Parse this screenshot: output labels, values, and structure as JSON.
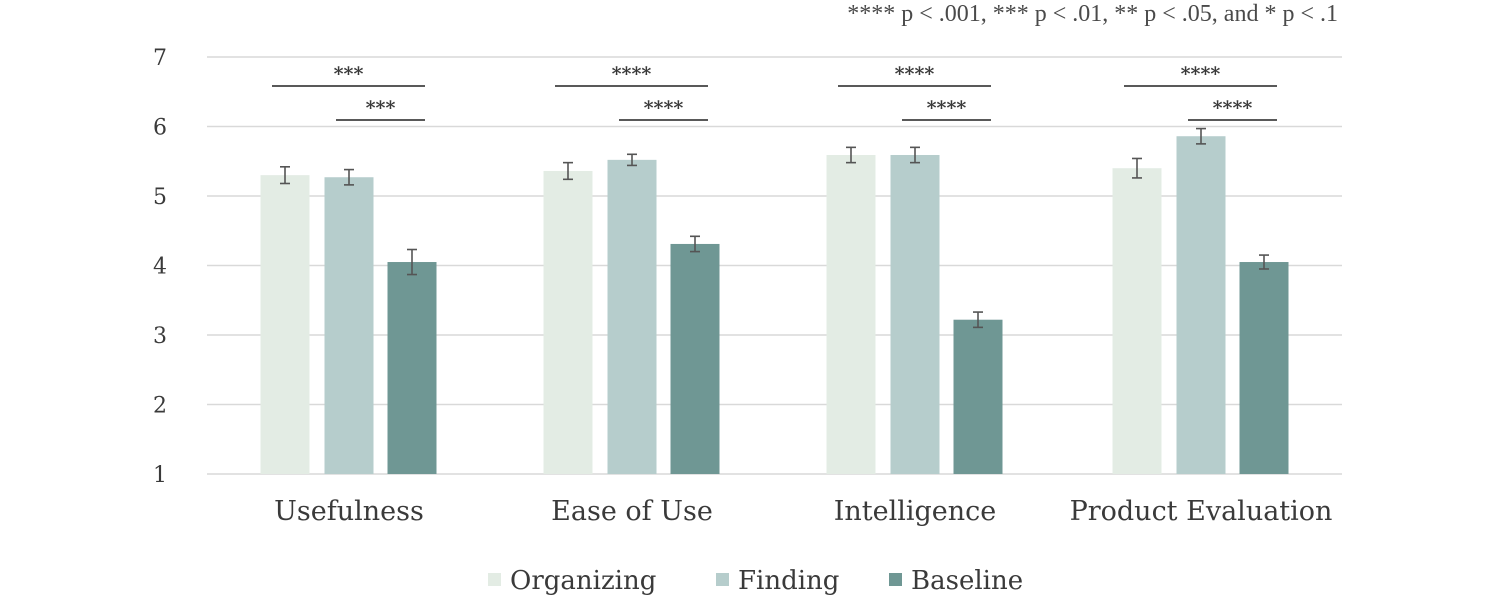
{
  "note": "**** p < .001, *** p < .01, ** p < .05, and * p < .1",
  "chart_data": {
    "type": "bar",
    "categories": [
      "Usefulness",
      "Ease of Use",
      "Intelligence",
      "Product Evaluation"
    ],
    "ylim": [
      1,
      7
    ],
    "yticks": [
      "1",
      "2",
      "3",
      "4",
      "5",
      "6",
      "7"
    ],
    "grid": true,
    "legend_position": "bottom",
    "series": [
      {
        "name": "Organizing",
        "color": "#e3ece4",
        "values": [
          5.3,
          5.36,
          5.59,
          5.4
        ],
        "errors": [
          0.12,
          0.12,
          0.11,
          0.14
        ]
      },
      {
        "name": "Finding",
        "color": "#b6cdcc",
        "values": [
          5.27,
          5.52,
          5.59,
          5.86
        ],
        "errors": [
          0.11,
          0.08,
          0.11,
          0.11
        ]
      },
      {
        "name": "Baseline",
        "color": "#6f9794",
        "values": [
          4.05,
          4.31,
          3.22,
          4.05
        ],
        "errors": [
          0.18,
          0.11,
          0.11,
          0.1
        ]
      }
    ],
    "significance": [
      {
        "category": 0,
        "from": "Organizing",
        "to": "Baseline",
        "label": "***"
      },
      {
        "category": 0,
        "from": "Finding",
        "to": "Baseline",
        "label": "***"
      },
      {
        "category": 1,
        "from": "Organizing",
        "to": "Baseline",
        "label": "****"
      },
      {
        "category": 1,
        "from": "Finding",
        "to": "Baseline",
        "label": "****"
      },
      {
        "category": 2,
        "from": "Organizing",
        "to": "Baseline",
        "label": "****"
      },
      {
        "category": 2,
        "from": "Finding",
        "to": "Baseline",
        "label": "****"
      },
      {
        "category": 3,
        "from": "Organizing",
        "to": "Baseline",
        "label": "****"
      },
      {
        "category": 3,
        "from": "Finding",
        "to": "Baseline",
        "label": "****"
      }
    ]
  }
}
